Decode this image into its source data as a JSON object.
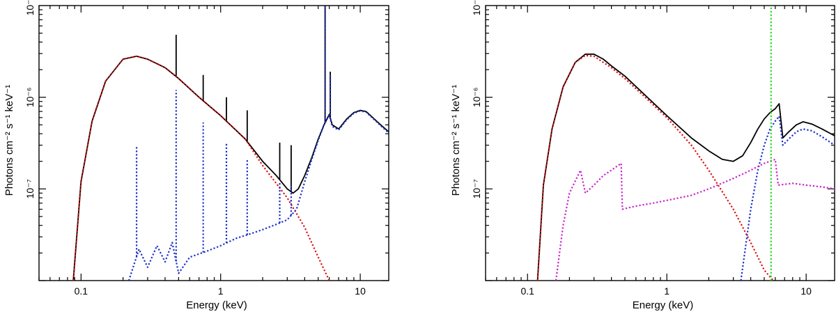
{
  "chart_data": [
    {
      "type": "line",
      "xscale": "log",
      "yscale": "log",
      "xlim": [
        0.05,
        16
      ],
      "ylim": [
        1e-08,
        1e-05
      ],
      "xlabel": "Energy (keV)",
      "ylabel": "Photons cm⁻² s⁻¹ keV⁻¹",
      "xticks": [
        {
          "value": 0.1,
          "label": "0.1"
        },
        {
          "value": 1,
          "label": "1"
        },
        {
          "value": 10,
          "label": "10"
        }
      ],
      "yticks": [
        {
          "value": 1e-07,
          "label": "10⁻⁷"
        },
        {
          "value": 1e-06,
          "label": "10⁻⁶"
        },
        {
          "value": 1e-05,
          "label": "10⁻⁵"
        }
      ],
      "grid": false,
      "series": [
        {
          "color": "#000000",
          "style": "solid",
          "points": [
            [
              0.088,
              1e-08
            ],
            [
              0.1,
              1.2e-07
            ],
            [
              0.12,
              5.5e-07
            ],
            [
              0.15,
              1.5e-06
            ],
            [
              0.2,
              2.6e-06
            ],
            [
              0.25,
              2.8e-06
            ],
            [
              0.3,
              2.6e-06
            ],
            [
              0.4,
              2.1e-06
            ],
            [
              0.5,
              1.6e-06
            ],
            [
              0.7,
              1e-06
            ],
            [
              1,
              6.3e-07
            ],
            [
              1.5,
              3.5e-07
            ],
            [
              2,
              2e-07
            ],
            [
              2.5,
              1.4e-07
            ],
            [
              3,
              1e-07
            ],
            [
              3.3,
              9e-08
            ],
            [
              3.6,
              1e-07
            ],
            [
              4,
              1.4e-07
            ],
            [
              4.5,
              2.2e-07
            ],
            [
              5,
              3.5e-07
            ],
            [
              5.5,
              5e-07
            ],
            [
              6,
              6.5e-07
            ],
            [
              6.3,
              5e-07
            ],
            [
              7,
              4.5e-07
            ],
            [
              8,
              5.8e-07
            ],
            [
              9,
              6.8e-07
            ],
            [
              10,
              7.2e-07
            ],
            [
              11,
              7e-07
            ],
            [
              12,
              6.2e-07
            ],
            [
              14,
              5e-07
            ],
            [
              16,
              4.2e-07
            ]
          ],
          "lines": [
            {
              "energy": 0.48,
              "peak": 4.8e-06
            },
            {
              "energy": 0.75,
              "peak": 1.75e-06
            },
            {
              "energy": 1.1,
              "peak": 1e-06
            },
            {
              "energy": 1.55,
              "peak": 7.2e-07
            },
            {
              "energy": 2.65,
              "peak": 3.2e-07
            },
            {
              "energy": 3.2,
              "peak": 3e-07
            },
            {
              "energy": 5.6,
              "peak": 1e-05
            },
            {
              "energy": 6.1,
              "peak": 1.9e-06
            }
          ]
        },
        {
          "color": "#dd1111",
          "style": "dotted",
          "points": [
            [
              0.088,
              1e-08
            ],
            [
              0.1,
              1.2e-07
            ],
            [
              0.12,
              5.5e-07
            ],
            [
              0.15,
              1.5e-06
            ],
            [
              0.2,
              2.6e-06
            ],
            [
              0.25,
              2.8e-06
            ],
            [
              0.3,
              2.6e-06
            ],
            [
              0.4,
              2.1e-06
            ],
            [
              0.5,
              1.6e-06
            ],
            [
              0.7,
              1e-06
            ],
            [
              1,
              6.3e-07
            ],
            [
              1.5,
              3.5e-07
            ],
            [
              2,
              1.8e-07
            ],
            [
              3,
              8e-08
            ],
            [
              4,
              3.8e-08
            ],
            [
              5,
              1.8e-08
            ],
            [
              6,
              1e-08
            ]
          ]
        },
        {
          "color": "#1a2fcc",
          "style": "dotted",
          "points": [
            [
              0.22,
              1e-08
            ],
            [
              0.26,
              2.2e-08
            ],
            [
              0.3,
              1.4e-08
            ],
            [
              0.35,
              2.4e-08
            ],
            [
              0.4,
              1.6e-08
            ],
            [
              0.45,
              2.6e-08
            ],
            [
              0.5,
              1.2e-08
            ],
            [
              0.6,
              1.8e-08
            ],
            [
              0.8,
              2.1e-08
            ],
            [
              1,
              2.4e-08
            ],
            [
              1.3,
              2.9e-08
            ],
            [
              1.6,
              3.2e-08
            ],
            [
              2,
              3.6e-08
            ],
            [
              2.5,
              4.1e-08
            ],
            [
              3,
              4.6e-08
            ],
            [
              3.5,
              6e-08
            ],
            [
              4,
              1.2e-07
            ],
            [
              4.5,
              2.1e-07
            ],
            [
              5,
              3.4e-07
            ],
            [
              5.5,
              5e-07
            ],
            [
              6,
              6.4e-07
            ],
            [
              6.3,
              4.8e-07
            ],
            [
              7,
              4.4e-07
            ],
            [
              8,
              5.7e-07
            ],
            [
              9,
              6.7e-07
            ],
            [
              10,
              7.1e-07
            ],
            [
              11,
              6.9e-07
            ],
            [
              12,
              6.1e-07
            ],
            [
              14,
              4.9e-07
            ],
            [
              16,
              4.1e-07
            ]
          ],
          "lines": [
            {
              "energy": 0.25,
              "peak": 3e-07
            },
            {
              "energy": 0.48,
              "peak": 1.2e-06
            },
            {
              "energy": 0.75,
              "peak": 5.3e-07
            },
            {
              "energy": 1.1,
              "peak": 3.2e-07
            },
            {
              "energy": 1.55,
              "peak": 2.1e-07
            },
            {
              "energy": 2.65,
              "peak": 1.2e-07
            },
            {
              "energy": 3.2,
              "peak": 1.1e-07
            },
            {
              "energy": 5.6,
              "peak": 1e-05
            },
            {
              "energy": 6.1,
              "peak": 1.8e-06
            }
          ]
        }
      ]
    },
    {
      "type": "line",
      "xscale": "log",
      "yscale": "log",
      "xlim": [
        0.05,
        16
      ],
      "ylim": [
        1e-08,
        1e-05
      ],
      "xlabel": "Energy (keV)",
      "ylabel": "Photons cm⁻² s⁻¹ keV⁻¹",
      "xticks": [
        {
          "value": 0.1,
          "label": "0.1"
        },
        {
          "value": 1,
          "label": "1"
        },
        {
          "value": 10,
          "label": "10"
        }
      ],
      "yticks": [
        {
          "value": 1e-07,
          "label": "10⁻⁷"
        },
        {
          "value": 1e-06,
          "label": "10⁻⁶"
        },
        {
          "value": 1e-05,
          "label": "10⁻⁵"
        }
      ],
      "grid": false,
      "series": [
        {
          "color": "#000000",
          "style": "solid",
          "points": [
            [
              0.118,
              1e-08
            ],
            [
              0.13,
              1.1e-07
            ],
            [
              0.15,
              4.5e-07
            ],
            [
              0.18,
              1.3e-06
            ],
            [
              0.22,
              2.4e-06
            ],
            [
              0.26,
              2.95e-06
            ],
            [
              0.3,
              2.95e-06
            ],
            [
              0.35,
              2.6e-06
            ],
            [
              0.4,
              2.2e-06
            ],
            [
              0.5,
              1.7e-06
            ],
            [
              0.7,
              1.05e-06
            ],
            [
              1,
              6.3e-07
            ],
            [
              1.5,
              3.6e-07
            ],
            [
              2,
              2.6e-07
            ],
            [
              2.5,
              2.1e-07
            ],
            [
              3,
              2e-07
            ],
            [
              3.5,
              2.3e-07
            ],
            [
              4,
              3.2e-07
            ],
            [
              4.5,
              4.5e-07
            ],
            [
              5,
              5.8e-07
            ],
            [
              5.5,
              6.8e-07
            ],
            [
              6,
              7.5e-07
            ],
            [
              6.4,
              8.5e-07
            ],
            [
              6.8,
              3.6e-07
            ],
            [
              7.5,
              4.2e-07
            ],
            [
              8.5,
              5e-07
            ],
            [
              9.5,
              5.4e-07
            ],
            [
              11,
              5.1e-07
            ],
            [
              13,
              4.5e-07
            ],
            [
              16,
              3.8e-07
            ]
          ],
          "lines": []
        },
        {
          "color": "#dd1111",
          "style": "dotted",
          "points": [
            [
              0.118,
              1e-08
            ],
            [
              0.13,
              1.1e-07
            ],
            [
              0.15,
              4.5e-07
            ],
            [
              0.18,
              1.3e-06
            ],
            [
              0.22,
              2.4e-06
            ],
            [
              0.26,
              2.85e-06
            ],
            [
              0.3,
              2.8e-06
            ],
            [
              0.4,
              2.1e-06
            ],
            [
              0.5,
              1.6e-06
            ],
            [
              0.7,
              1e-06
            ],
            [
              1,
              6e-07
            ],
            [
              1.5,
              3e-07
            ],
            [
              2,
              1.6e-07
            ],
            [
              3,
              6e-08
            ],
            [
              4,
              2.6e-08
            ],
            [
              5,
              1.3e-08
            ],
            [
              5.8,
              1e-08
            ]
          ]
        },
        {
          "color": "#1a2fcc",
          "style": "dotted",
          "points": [
            [
              3.4,
              1e-08
            ],
            [
              4,
              6e-08
            ],
            [
              4.5,
              1.6e-07
            ],
            [
              5,
              3e-07
            ],
            [
              5.5,
              4.5e-07
            ],
            [
              6,
              5.5e-07
            ],
            [
              6.4,
              6.2e-07
            ],
            [
              6.8,
              3e-07
            ],
            [
              7.5,
              3.5e-07
            ],
            [
              8.5,
              4.2e-07
            ],
            [
              9.5,
              4.5e-07
            ],
            [
              11,
              4.3e-07
            ],
            [
              13,
              3.7e-07
            ],
            [
              16,
              3e-07
            ]
          ]
        },
        {
          "color": "#cc22cc",
          "style": "dotted",
          "points": [
            [
              0.16,
              1e-08
            ],
            [
              0.18,
              4e-08
            ],
            [
              0.2,
              9e-08
            ],
            [
              0.24,
              1.6e-07
            ],
            [
              0.26,
              9e-08
            ],
            [
              0.3,
              1.1e-07
            ],
            [
              0.35,
              1.4e-07
            ],
            [
              0.4,
              1.6e-07
            ],
            [
              0.47,
              1.9e-07
            ],
            [
              0.48,
              6e-08
            ],
            [
              0.6,
              6.5e-08
            ],
            [
              0.8,
              7e-08
            ],
            [
              1,
              7.5e-08
            ],
            [
              1.5,
              8.5e-08
            ],
            [
              2,
              1e-07
            ],
            [
              3,
              1.3e-07
            ],
            [
              4,
              1.6e-07
            ],
            [
              5,
              1.9e-07
            ],
            [
              6,
              2.1e-07
            ],
            [
              6.3,
              1.1e-07
            ],
            [
              8,
              1.15e-07
            ],
            [
              10,
              1.1e-07
            ],
            [
              13,
              1.05e-07
            ],
            [
              16,
              1e-07
            ]
          ]
        },
        {
          "color": "#22dd22",
          "style": "dotted",
          "points": [
            [
              5.6,
              1e-08
            ],
            [
              5.6,
              1e-05
            ]
          ]
        }
      ]
    }
  ]
}
